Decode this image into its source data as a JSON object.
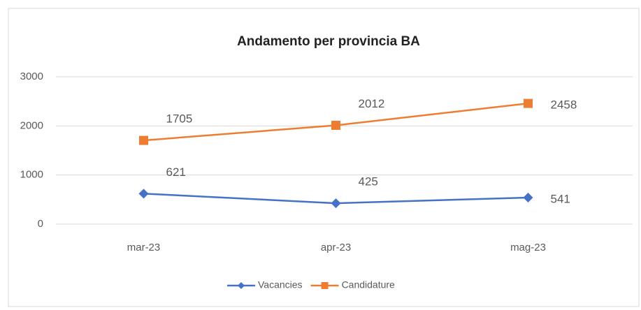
{
  "chart_data": {
    "type": "line",
    "title": "Andamento per provincia BA",
    "categories": [
      "mar-23",
      "apr-23",
      "mag-23"
    ],
    "series": [
      {
        "name": "Vacancies",
        "color": "#4472c4",
        "marker": "diamond",
        "values": [
          621,
          425,
          541
        ]
      },
      {
        "name": "Candidature",
        "color": "#ed7d31",
        "marker": "square",
        "values": [
          1705,
          2012,
          2458
        ]
      }
    ],
    "ylim": [
      0,
      3000
    ],
    "yticks": [
      0,
      1000,
      2000,
      3000
    ],
    "grid": true,
    "legend": "bottom"
  }
}
